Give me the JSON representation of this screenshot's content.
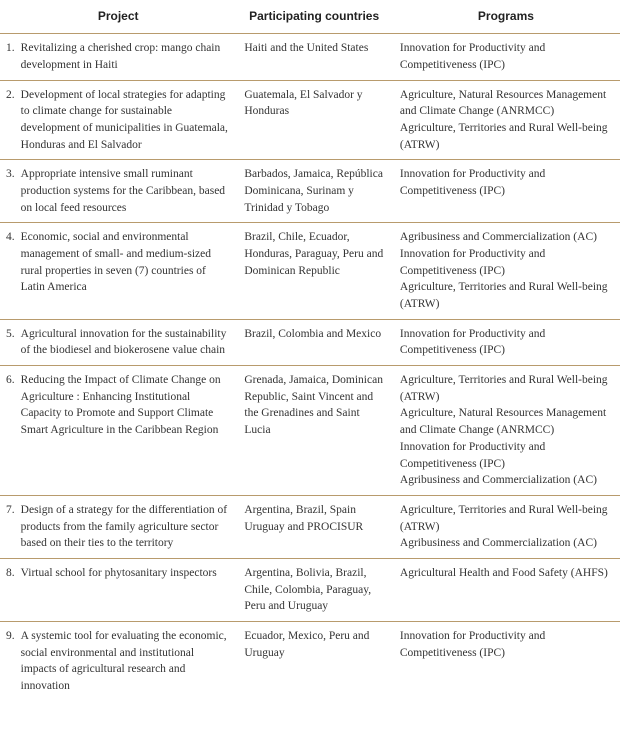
{
  "headers": {
    "project": "Project",
    "countries": "Participating countries",
    "programs": "Programs"
  },
  "rows": [
    {
      "num": "1.",
      "project": "Revitalizing a cherished crop: mango chain development in Haiti",
      "countries": "Haiti and the United States",
      "programs": "Innovation for Productivity and Competitiveness (IPC)"
    },
    {
      "num": "2.",
      "project": "Development of local strategies for adapting to climate change for sustainable development of municipalities in Guatemala, Honduras and El Salvador",
      "countries": "Guatemala, El Salvador y Honduras",
      "programs": "Agriculture, Natural Resources Management and Climate Change (ANRMCC)\nAgriculture, Territories and Rural Well-being (ATRW)"
    },
    {
      "num": "3.",
      "project": "Appropriate intensive small ruminant production systems for the Caribbean, based on local feed resources",
      "countries": "Barbados, Jamaica, República Dominicana, Surinam y Trinidad y Tobago",
      "programs": "Innovation for Productivity and Competitiveness (IPC)"
    },
    {
      "num": "4.",
      "project": "Economic, social and environmental management of small- and medium-sized rural properties in seven (7) countries of Latin America",
      "countries": "Brazil, Chile, Ecuador, Honduras, Paraguay, Peru and Dominican Republic",
      "programs": "Agribusiness and Commercialization (AC)\nInnovation for Productivity and Competitiveness (IPC)\nAgriculture, Territories and Rural Well-being (ATRW)"
    },
    {
      "num": "5.",
      "project": "Agricultural innovation for the sustainability of the biodiesel and biokerosene value chain",
      "countries": "Brazil, Colombia and Mexico",
      "programs": "Innovation for Productivity and Competitiveness (IPC)"
    },
    {
      "num": "6.",
      "project": "Reducing the Impact of Climate Change on Agriculture : Enhancing Institutional Capacity to Promote and Support Climate Smart Agriculture in the Caribbean Region",
      "countries": "Grenada, Jamaica, Dominican Republic, Saint Vincent and the Grenadines and Saint Lucia",
      "programs": "Agriculture, Territories and Rural Well-being (ATRW)\nAgriculture, Natural Resources Management and Climate Change (ANRMCC)\nInnovation for Productivity and Competitiveness (IPC)\nAgribusiness and Commercialization (AC)"
    },
    {
      "num": "7.",
      "project": "Design of a strategy for the differentiation of products from the family agriculture sector based on their ties to the territory",
      "countries": "Argentina, Brazil, Spain Uruguay and PROCISUR",
      "programs": "Agriculture, Territories and Rural Well-being (ATRW)\nAgribusiness and Commercialization (AC)"
    },
    {
      "num": "8.",
      "project": "Virtual school for phytosanitary inspectors",
      "countries": "Argentina, Bolivia, Brazil, Chile, Colombia, Paraguay, Peru and Uruguay",
      "programs": "Agricultural Health and Food Safety (AHFS)"
    },
    {
      "num": "9.",
      "project": "A systemic tool for evaluating the economic, social environmental and institutional impacts of agricultural research and innovation",
      "countries": "Ecuador, Mexico, Peru and Uruguay",
      "programs": "Innovation for Productivity and Competitiveness (IPC)"
    }
  ]
}
